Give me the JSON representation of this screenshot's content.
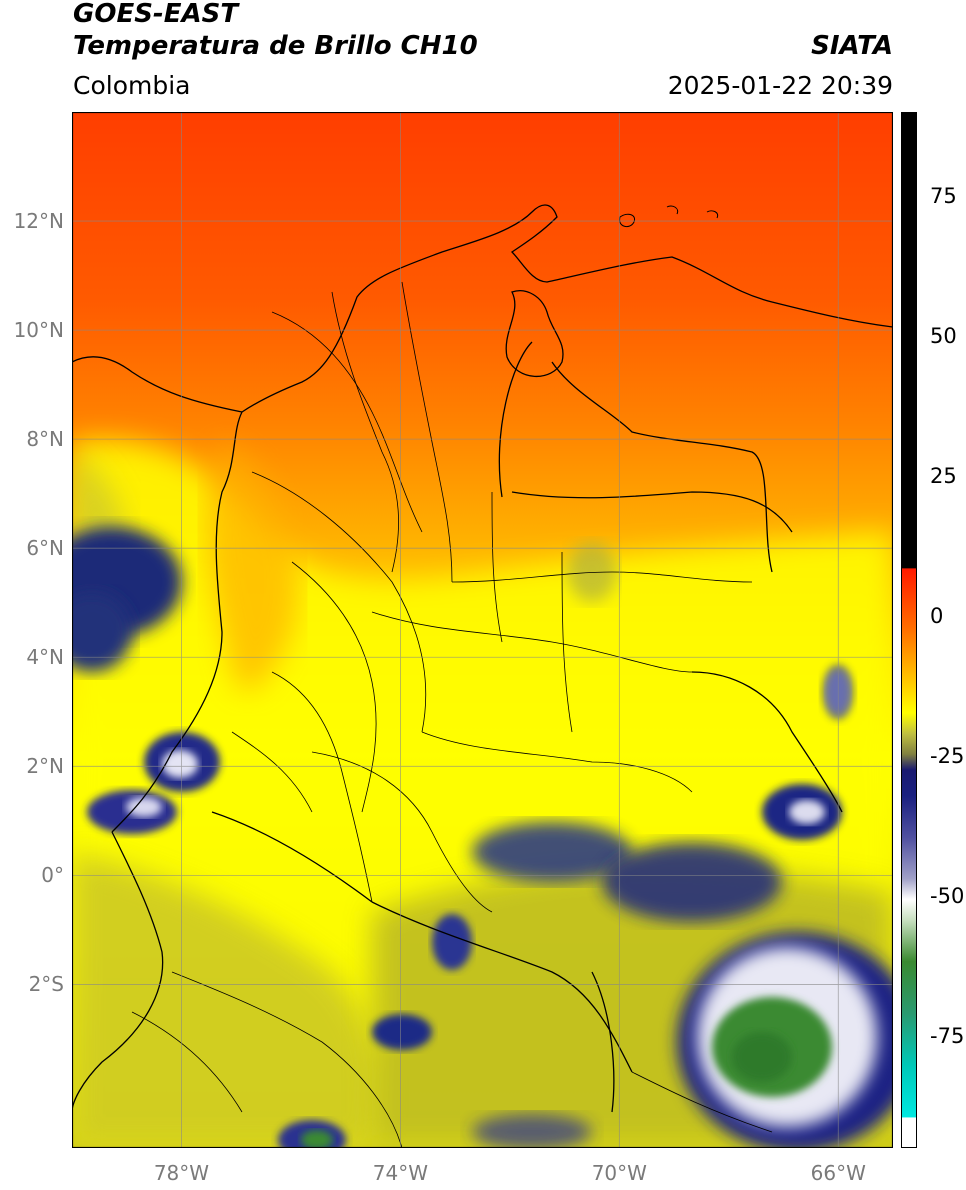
{
  "header": {
    "satellite": "GOES-EAST",
    "product": "Temperatura de Brillo CH10",
    "region": "Colombia",
    "source": "SIATA",
    "timestamp": "2025-01-22 20:39"
  },
  "map": {
    "lon_range": [
      -80,
      -65
    ],
    "lat_range": [
      -5,
      14
    ],
    "lat_ticks": [
      {
        "value": 12,
        "label": "12°N"
      },
      {
        "value": 10,
        "label": "10°N"
      },
      {
        "value": 8,
        "label": "8°N"
      },
      {
        "value": 6,
        "label": "6°N"
      },
      {
        "value": 4,
        "label": "4°N"
      },
      {
        "value": 2,
        "label": "2°N"
      },
      {
        "value": 0,
        "label": "0°"
      },
      {
        "value": -2,
        "label": "2°S"
      }
    ],
    "lon_ticks": [
      {
        "value": -78,
        "label": "78°W"
      },
      {
        "value": -74,
        "label": "74°W"
      },
      {
        "value": -70,
        "label": "70°W"
      },
      {
        "value": -66,
        "label": "66°W"
      }
    ],
    "gridlines": true,
    "colors": {
      "warm_north": "#ff4a00",
      "mid": "#ff9a00",
      "land_yellow": "#ffff00",
      "olive": "#b8b820",
      "cold_navy": "#1a2080",
      "very_cold_white": "#e8e8f4",
      "coldest_green": "#3a8a30"
    }
  },
  "colorbar": {
    "range": [
      -95,
      90
    ],
    "ticks": [
      {
        "value": 75,
        "label": "75"
      },
      {
        "value": 50,
        "label": "50"
      },
      {
        "value": 25,
        "label": "25"
      },
      {
        "value": 0,
        "label": "0"
      },
      {
        "value": -25,
        "label": "-25"
      },
      {
        "value": -50,
        "label": "-50"
      },
      {
        "value": -75,
        "label": "-75"
      }
    ]
  }
}
